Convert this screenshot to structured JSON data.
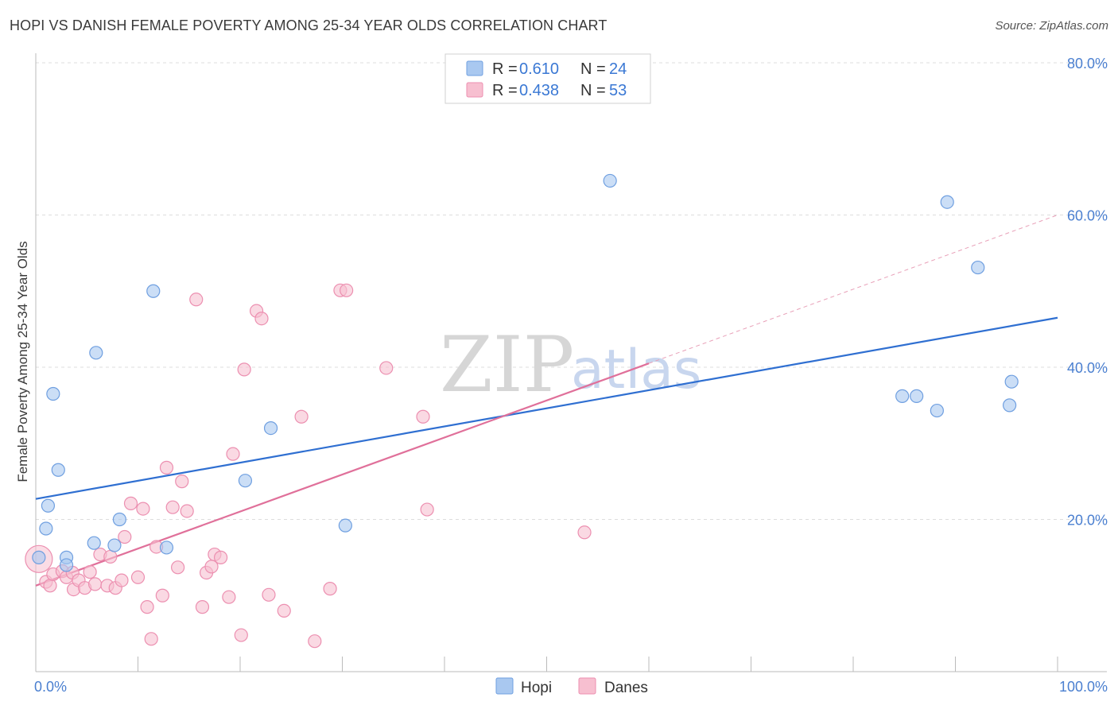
{
  "header": {
    "title": "HOPI VS DANISH FEMALE POVERTY AMONG 25-34 YEAR OLDS CORRELATION CHART",
    "source": "Source: ZipAtlas.com"
  },
  "watermark": {
    "zip": "ZIP",
    "atlas": "atlas"
  },
  "legend": {
    "rows": [
      {
        "r_label": "R = ",
        "r_value": "0.610",
        "n_label": "N = ",
        "n_value": "24",
        "color": "#a9c8f0",
        "border": "#6f9fe0"
      },
      {
        "r_label": "R = ",
        "r_value": "0.438",
        "n_label": "N = ",
        "n_value": "53",
        "color": "#f7bfd0",
        "border": "#ec8fb0"
      }
    ]
  },
  "bottom_legend": [
    {
      "name": "Hopi",
      "color": "#a9c8f0",
      "border": "#6f9fe0"
    },
    {
      "name": "Danes",
      "color": "#f7bfd0",
      "border": "#ec8fb0"
    }
  ],
  "chart_data": {
    "type": "scatter",
    "title": "HOPI VS DANISH FEMALE POVERTY AMONG 25-34 YEAR OLDS CORRELATION CHART",
    "xlabel": "",
    "ylabel": "Female Poverty Among 25-34 Year Olds",
    "xlim": [
      0,
      100
    ],
    "ylim": [
      0,
      80
    ],
    "x_tick_labels": [
      {
        "value": 0,
        "label": "0.0%"
      },
      {
        "value": 100,
        "label": "100.0%"
      }
    ],
    "y_tick_labels": [
      {
        "value": 20,
        "label": "20.0%"
      },
      {
        "value": 40,
        "label": "40.0%"
      },
      {
        "value": 60,
        "label": "60.0%"
      },
      {
        "value": 80,
        "label": "80.0%"
      }
    ],
    "x_minor_ticks": [
      0,
      10,
      20,
      30,
      40,
      50,
      60,
      70,
      80,
      90,
      100
    ],
    "grid": true,
    "series": [
      {
        "name": "Hopi",
        "color": "#a9c8f0",
        "edge": "#6f9fe0",
        "points": [
          [
            0.3,
            15.0
          ],
          [
            1.0,
            18.8
          ],
          [
            1.2,
            21.8
          ],
          [
            1.7,
            36.5
          ],
          [
            2.2,
            26.5
          ],
          [
            3.0,
            15.0
          ],
          [
            3.0,
            14.0
          ],
          [
            5.7,
            16.9
          ],
          [
            7.7,
            16.6
          ],
          [
            8.2,
            20.0
          ],
          [
            11.5,
            50.0
          ],
          [
            12.8,
            16.3
          ],
          [
            5.9,
            41.9
          ],
          [
            20.5,
            25.1
          ],
          [
            23.0,
            32.0
          ],
          [
            30.3,
            19.2
          ],
          [
            56.2,
            64.5
          ],
          [
            84.8,
            36.2
          ],
          [
            86.2,
            36.2
          ],
          [
            88.2,
            34.3
          ],
          [
            89.2,
            61.7
          ],
          [
            92.2,
            53.1
          ],
          [
            95.3,
            35.0
          ],
          [
            95.5,
            38.1
          ]
        ],
        "trend": {
          "x": [
            0,
            100
          ],
          "y": [
            22.7,
            46.5
          ]
        }
      },
      {
        "name": "Danes",
        "color": "#f7bfd0",
        "edge": "#ec8fb0",
        "points": [
          [
            0.3,
            14.8
          ],
          [
            1.0,
            11.8
          ],
          [
            1.4,
            11.3
          ],
          [
            1.7,
            12.8
          ],
          [
            2.6,
            13.2
          ],
          [
            3.0,
            12.4
          ],
          [
            3.6,
            13.0
          ],
          [
            3.7,
            10.8
          ],
          [
            4.2,
            12.0
          ],
          [
            4.8,
            11.0
          ],
          [
            5.3,
            13.1
          ],
          [
            5.8,
            11.5
          ],
          [
            6.3,
            15.4
          ],
          [
            7.0,
            11.3
          ],
          [
            7.3,
            15.1
          ],
          [
            7.8,
            11.0
          ],
          [
            8.4,
            12.0
          ],
          [
            8.7,
            17.7
          ],
          [
            9.3,
            22.1
          ],
          [
            10.5,
            21.4
          ],
          [
            10.0,
            12.4
          ],
          [
            10.9,
            8.5
          ],
          [
            11.3,
            4.3
          ],
          [
            11.8,
            16.4
          ],
          [
            12.4,
            10.0
          ],
          [
            12.8,
            26.8
          ],
          [
            13.4,
            21.6
          ],
          [
            13.9,
            13.7
          ],
          [
            14.3,
            25.0
          ],
          [
            14.8,
            21.1
          ],
          [
            15.7,
            48.9
          ],
          [
            16.3,
            8.5
          ],
          [
            16.7,
            13.0
          ],
          [
            17.2,
            13.8
          ],
          [
            17.5,
            15.4
          ],
          [
            18.1,
            15.0
          ],
          [
            18.9,
            9.8
          ],
          [
            19.3,
            28.6
          ],
          [
            20.1,
            4.8
          ],
          [
            20.4,
            39.7
          ],
          [
            21.6,
            47.4
          ],
          [
            22.1,
            46.4
          ],
          [
            22.8,
            10.1
          ],
          [
            24.3,
            8.0
          ],
          [
            26.0,
            33.5
          ],
          [
            27.3,
            4.0
          ],
          [
            28.8,
            10.9
          ],
          [
            29.8,
            50.1
          ],
          [
            30.4,
            50.1
          ],
          [
            34.3,
            39.9
          ],
          [
            37.9,
            33.5
          ],
          [
            38.3,
            21.3
          ],
          [
            53.7,
            18.3
          ]
        ],
        "trend": {
          "x": [
            0,
            60
          ],
          "y": [
            11.3,
            40.5
          ]
        },
        "trend_extension": {
          "x": [
            60,
            100
          ],
          "y": [
            40.5,
            60.0
          ]
        }
      }
    ]
  }
}
